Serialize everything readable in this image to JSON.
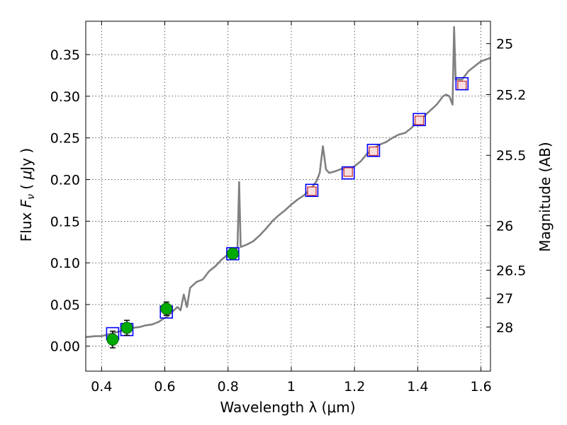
{
  "chart_data": {
    "type": "scatter",
    "xlabel": "Wavelength  λ (μm)",
    "ylabel": "Flux  F_ν  ( μJy )",
    "ylabel_right": "Magnitude (AB)",
    "xlim": [
      0.35,
      1.63
    ],
    "ylim": [
      -0.03,
      0.39
    ],
    "grid": true,
    "x_ticks": [
      0.4,
      0.6,
      0.8,
      1.0,
      1.2,
      1.4,
      1.6
    ],
    "x_tick_labels": [
      "0.4",
      "0.6",
      "0.8",
      "1",
      "1.2",
      "1.4",
      "1.6"
    ],
    "y_ticks": [
      0.0,
      0.05,
      0.1,
      0.15,
      0.2,
      0.25,
      0.3,
      0.35
    ],
    "y_tick_labels": [
      "0.00",
      "0.05",
      "0.10",
      "0.15",
      "0.20",
      "0.25",
      "0.30",
      "0.35"
    ],
    "right_ticks": [
      {
        "mag": 25,
        "label": "25"
      },
      {
        "mag": 25.2,
        "label": "25.2"
      },
      {
        "mag": 25.5,
        "label": "25.5"
      },
      {
        "mag": 26,
        "label": "26"
      },
      {
        "mag": 26.5,
        "label": "26.5"
      },
      {
        "mag": 27,
        "label": "27"
      },
      {
        "mag": 28,
        "label": "28"
      }
    ],
    "colors": {
      "spectrum": "#808080",
      "model_box": "#0000ff",
      "observed": "#00aa00",
      "observed_edge": "#006600",
      "predicted": "#cc3333",
      "errorbar": "#000000"
    },
    "series": [
      {
        "kind": "line",
        "points": [
          [
            0.35,
            0.011
          ],
          [
            0.38,
            0.012
          ],
          [
            0.4,
            0.012
          ],
          [
            0.42,
            0.014
          ],
          [
            0.44,
            0.016
          ],
          [
            0.46,
            0.018
          ],
          [
            0.48,
            0.021
          ],
          [
            0.5,
            0.022
          ],
          [
            0.52,
            0.023
          ],
          [
            0.54,
            0.025
          ],
          [
            0.56,
            0.026
          ],
          [
            0.58,
            0.029
          ],
          [
            0.6,
            0.034
          ],
          [
            0.61,
            0.036
          ],
          [
            0.62,
            0.04
          ],
          [
            0.64,
            0.047
          ],
          [
            0.65,
            0.043
          ],
          [
            0.66,
            0.062
          ],
          [
            0.67,
            0.047
          ],
          [
            0.68,
            0.07
          ],
          [
            0.7,
            0.077
          ],
          [
            0.72,
            0.08
          ],
          [
            0.74,
            0.09
          ],
          [
            0.76,
            0.096
          ],
          [
            0.78,
            0.104
          ],
          [
            0.8,
            0.11
          ],
          [
            0.82,
            0.114
          ],
          [
            0.83,
            0.118
          ],
          [
            0.835,
            0.197
          ],
          [
            0.84,
            0.119
          ],
          [
            0.86,
            0.122
          ],
          [
            0.88,
            0.126
          ],
          [
            0.9,
            0.133
          ],
          [
            0.92,
            0.141
          ],
          [
            0.94,
            0.15
          ],
          [
            0.96,
            0.157
          ],
          [
            0.98,
            0.163
          ],
          [
            1.0,
            0.17
          ],
          [
            1.02,
            0.176
          ],
          [
            1.04,
            0.181
          ],
          [
            1.06,
            0.188
          ],
          [
            1.08,
            0.198
          ],
          [
            1.09,
            0.208
          ],
          [
            1.1,
            0.24
          ],
          [
            1.11,
            0.212
          ],
          [
            1.12,
            0.208
          ],
          [
            1.14,
            0.21
          ],
          [
            1.16,
            0.213
          ],
          [
            1.18,
            0.21
          ],
          [
            1.2,
            0.216
          ],
          [
            1.22,
            0.222
          ],
          [
            1.24,
            0.231
          ],
          [
            1.26,
            0.237
          ],
          [
            1.28,
            0.242
          ],
          [
            1.3,
            0.245
          ],
          [
            1.32,
            0.25
          ],
          [
            1.34,
            0.254
          ],
          [
            1.36,
            0.256
          ],
          [
            1.38,
            0.262
          ],
          [
            1.4,
            0.27
          ],
          [
            1.42,
            0.276
          ],
          [
            1.44,
            0.283
          ],
          [
            1.46,
            0.29
          ],
          [
            1.48,
            0.3
          ],
          [
            1.49,
            0.302
          ],
          [
            1.5,
            0.3
          ],
          [
            1.51,
            0.29
          ],
          [
            1.515,
            0.383
          ],
          [
            1.52,
            0.32
          ],
          [
            1.54,
            0.32
          ],
          [
            1.56,
            0.33
          ],
          [
            1.58,
            0.336
          ],
          [
            1.6,
            0.342
          ],
          [
            1.63,
            0.346
          ]
        ]
      },
      {
        "kind": "model_boxes",
        "points": [
          [
            0.435,
            0.015
          ],
          [
            0.48,
            0.02
          ],
          [
            0.605,
            0.041
          ],
          [
            0.815,
            0.111
          ],
          [
            1.065,
            0.187
          ],
          [
            1.18,
            0.208
          ],
          [
            1.26,
            0.235
          ],
          [
            1.405,
            0.272
          ],
          [
            1.54,
            0.315
          ]
        ]
      },
      {
        "kind": "observed",
        "points": [
          {
            "x": 0.435,
            "y": 0.008,
            "err": 0.01
          },
          {
            "x": 0.48,
            "y": 0.022,
            "err": 0.009
          },
          {
            "x": 0.605,
            "y": 0.045,
            "err": 0.008
          },
          {
            "x": 0.815,
            "y": 0.111,
            "err": 0.006
          }
        ]
      },
      {
        "kind": "predicted",
        "points": [
          [
            1.065,
            0.186
          ],
          [
            1.18,
            0.209
          ],
          [
            1.26,
            0.234
          ],
          [
            1.405,
            0.271
          ],
          [
            1.54,
            0.313
          ]
        ]
      }
    ]
  }
}
